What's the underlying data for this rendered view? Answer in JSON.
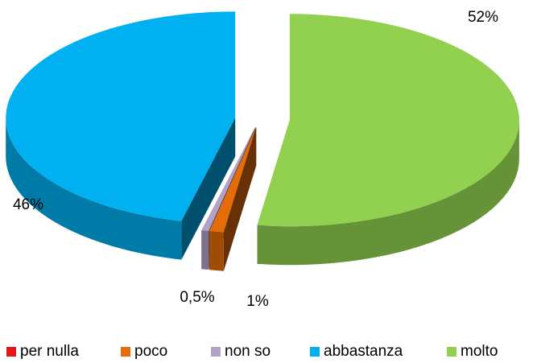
{
  "chart_data": {
    "type": "pie3d",
    "categories": [
      "per nulla",
      "poco",
      "non so",
      "abbastanza",
      "molto"
    ],
    "values": [
      0,
      1,
      0.5,
      46,
      52
    ],
    "value_labels": [
      null,
      "1%",
      "0,5%",
      "46%",
      "52%"
    ],
    "colors": [
      "#e8141c",
      "#e46c0a",
      "#b3a2c7",
      "#00b0f0",
      "#92d050"
    ],
    "legend": "bottom"
  }
}
